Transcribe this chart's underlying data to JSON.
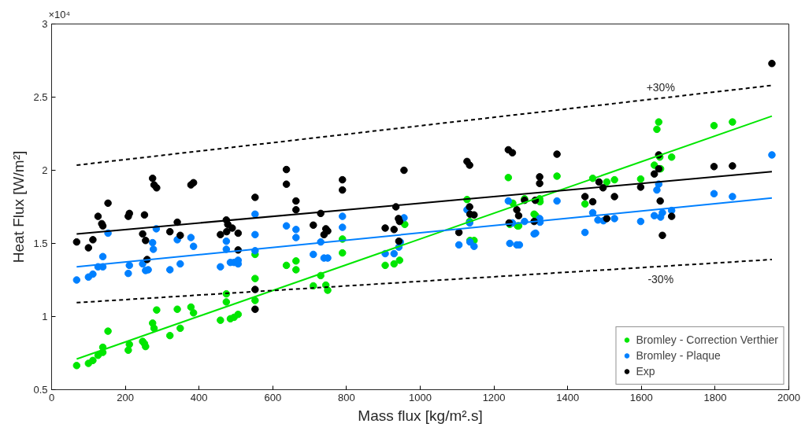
{
  "chart_data": {
    "type": "scatter",
    "xlabel": "Mass flux [kg/m².s]",
    "ylabel": "Heat Flux [W/m²]",
    "xlim": [
      0,
      2000
    ],
    "xticks": [
      0,
      200,
      400,
      600,
      800,
      1000,
      1200,
      1400,
      1600,
      1800,
      2000
    ],
    "ylim": [
      0.5,
      3
    ],
    "yticks": [
      0.5,
      1,
      1.5,
      2,
      2.5,
      3
    ],
    "grid": false,
    "legend": "bottom right",
    "annotations": [
      "×10⁴",
      "+30%",
      "-30%"
    ],
    "series": [
      {
        "name": "Bromley - Correction Verthier",
        "color": "#00e600",
        "marker": "circle",
        "x": [
          68,
          100,
          112,
          126,
          139,
          139,
          153,
          208,
          211,
          247,
          252,
          255,
          274,
          278,
          285,
          321,
          341,
          349,
          378,
          385,
          458,
          474,
          474,
          485,
          495,
          506,
          552,
          552,
          552,
          637,
          663,
          663,
          710,
          730,
          744,
          749,
          789,
          789,
          905,
          929,
          944,
          958,
          1127,
          1134,
          1135,
          1146,
          1239,
          1251,
          1243,
          1264,
          1267,
          1283,
          1309,
          1313,
          1324,
          1325,
          1371,
          1447,
          1468,
          1506,
          1527,
          1598,
          1647,
          1642,
          1650,
          1682,
          1635,
          1652,
          1797,
          1847
        ],
        "values": [
          0.665,
          0.68,
          0.7,
          0.735,
          0.755,
          0.79,
          0.9,
          0.77,
          0.81,
          0.83,
          0.815,
          0.795,
          0.955,
          0.92,
          1.045,
          0.87,
          1.05,
          0.92,
          1.065,
          1.025,
          0.975,
          1.155,
          1.1,
          0.985,
          0.995,
          1.015,
          1.425,
          1.26,
          1.11,
          1.35,
          1.38,
          1.32,
          1.21,
          1.28,
          1.215,
          1.18,
          1.53,
          1.435,
          1.35,
          1.36,
          1.385,
          1.63,
          1.8,
          1.65,
          1.52,
          1.52,
          1.95,
          1.775,
          1.63,
          1.62,
          1.62,
          1.805,
          1.7,
          1.69,
          1.805,
          1.785,
          1.96,
          1.77,
          1.945,
          1.92,
          1.935,
          1.94,
          2.33,
          2.28,
          2.09,
          2.09,
          2.035,
          2.01,
          2.305,
          2.33
        ]
      },
      {
        "name": "Bromley - Plaque",
        "color": "#0080ff",
        "marker": "circle",
        "x": [
          68,
          100,
          112,
          126,
          139,
          139,
          153,
          208,
          211,
          247,
          255,
          262,
          274,
          276,
          284,
          321,
          341,
          349,
          378,
          385,
          458,
          474,
          474,
          485,
          495,
          506,
          506,
          552,
          552,
          552,
          637,
          663,
          663,
          710,
          730,
          739,
          749,
          789,
          789,
          905,
          929,
          942,
          946,
          956,
          1105,
          1127,
          1134,
          1135,
          1146,
          1239,
          1243,
          1250,
          1262,
          1269,
          1283,
          1309,
          1313,
          1324,
          1325,
          1371,
          1447,
          1468,
          1482,
          1497,
          1527,
          1598,
          1647,
          1642,
          1635,
          1652,
          1657,
          1682,
          1797,
          1847,
          1954
        ],
        "values": [
          1.25,
          1.27,
          1.29,
          1.34,
          1.34,
          1.41,
          1.57,
          1.295,
          1.35,
          1.36,
          1.315,
          1.32,
          1.505,
          1.46,
          1.6,
          1.32,
          1.525,
          1.36,
          1.54,
          1.48,
          1.34,
          1.515,
          1.46,
          1.37,
          1.37,
          1.385,
          1.36,
          1.7,
          1.56,
          1.45,
          1.62,
          1.595,
          1.54,
          1.425,
          1.51,
          1.4,
          1.4,
          1.685,
          1.61,
          1.43,
          1.43,
          1.475,
          1.51,
          1.675,
          1.49,
          1.73,
          1.64,
          1.51,
          1.48,
          1.79,
          1.5,
          1.64,
          1.49,
          1.49,
          1.65,
          1.565,
          1.57,
          1.67,
          1.645,
          1.79,
          1.575,
          1.71,
          1.66,
          1.655,
          1.67,
          1.65,
          1.905,
          1.865,
          1.69,
          1.68,
          1.71,
          1.725,
          1.84,
          1.82,
          2.105
        ]
      },
      {
        "name": "Exp",
        "color": "#000000",
        "marker": "circle",
        "x": [
          68,
          100,
          112,
          126,
          136,
          139,
          153,
          208,
          211,
          247,
          252,
          255,
          259,
          274,
          278,
          285,
          321,
          341,
          349,
          378,
          385,
          458,
          474,
          478,
          490,
          475,
          506,
          506,
          552,
          552,
          552,
          637,
          637,
          663,
          663,
          710,
          730,
          744,
          749,
          739,
          789,
          789,
          905,
          929,
          934,
          941,
          944,
          942,
          956,
          1105,
          1127,
          1134,
          1134,
          1135,
          1146,
          1239,
          1250,
          1241,
          1262,
          1267,
          1283,
          1312,
          1309,
          1324,
          1324,
          1371,
          1447,
          1468,
          1485,
          1496,
          1527,
          1506,
          1598,
          1647,
          1647,
          1635,
          1651,
          1682,
          1657,
          1797,
          1847,
          1954
        ],
        "values": [
          1.51,
          1.47,
          1.525,
          1.685,
          1.635,
          1.62,
          1.775,
          1.685,
          1.705,
          1.565,
          1.695,
          1.52,
          1.39,
          1.945,
          1.9,
          1.88,
          1.58,
          1.645,
          1.555,
          1.9,
          1.915,
          1.56,
          1.66,
          1.63,
          1.605,
          1.58,
          1.57,
          1.455,
          1.815,
          1.185,
          1.05,
          2.005,
          1.905,
          1.79,
          1.73,
          1.625,
          1.705,
          1.6,
          1.585,
          1.56,
          1.935,
          1.865,
          1.605,
          1.595,
          1.75,
          1.67,
          1.65,
          1.515,
          2.0,
          1.575,
          2.06,
          2.035,
          1.75,
          1.7,
          1.695,
          2.14,
          2.12,
          1.64,
          1.73,
          1.69,
          1.795,
          1.795,
          1.65,
          1.955,
          1.91,
          2.11,
          1.82,
          1.785,
          1.92,
          1.88,
          1.82,
          1.67,
          1.885,
          2.105,
          2.01,
          1.975,
          1.79,
          1.685,
          1.555,
          2.025,
          2.03,
          2.73
        ]
      },
      {
        "type": "line",
        "color": "#00e600",
        "line_style": "solid",
        "marker": "none",
        "x": [
          68,
          1954
        ],
        "values": [
          0.71,
          2.37
        ]
      },
      {
        "type": "line",
        "color": "#0080ff",
        "line_style": "solid",
        "marker": "none",
        "x": [
          68,
          1954
        ],
        "values": [
          1.34,
          1.81
        ]
      },
      {
        "type": "line",
        "color": "#000000",
        "line_style": "solid",
        "marker": "none",
        "x": [
          68,
          1954
        ],
        "values": [
          1.565,
          1.99
        ]
      },
      {
        "type": "line",
        "color": "#000000",
        "line_style": "dashed",
        "marker": "none",
        "x": [
          68,
          1954
        ],
        "values": [
          2.035,
          2.58
        ]
      },
      {
        "type": "line",
        "color": "#000000",
        "line_style": "dashed",
        "marker": "none",
        "x": [
          68,
          1954
        ],
        "values": [
          1.095,
          1.39
        ]
      }
    ]
  }
}
